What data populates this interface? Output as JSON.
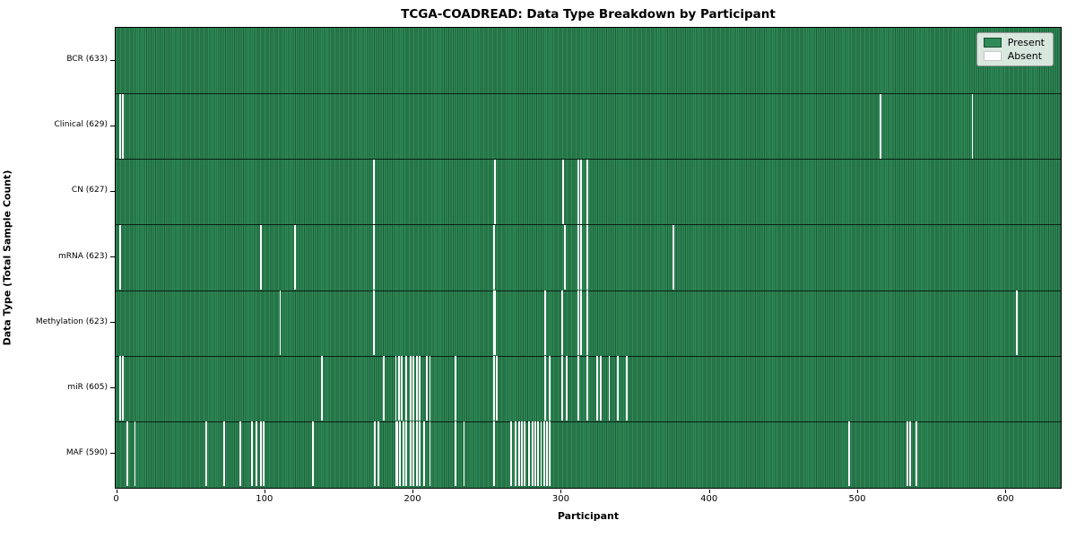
{
  "chart_data": {
    "type": "heatmap",
    "title": "TCGA-COADREAD: Data Type Breakdown by Participant",
    "xlabel": "Participant",
    "ylabel": "Data Type (Total Sample Count)",
    "x_ticks": [
      0,
      100,
      200,
      300,
      400,
      500,
      600
    ],
    "x_range": [
      0,
      637
    ],
    "n_participants": 633,
    "grid": false,
    "legend": {
      "position": "upper right",
      "entries": [
        {
          "label": "Present",
          "color": "#2e8b57"
        },
        {
          "label": "Absent",
          "color": "#ffffff"
        }
      ]
    },
    "colors": {
      "present": "#2e8b57",
      "bar_edge": "#1e5c3a",
      "absent": "#ffffff",
      "spine": "#000000"
    },
    "rows": [
      {
        "label": "BCR (633)",
        "data_type": "BCR",
        "total_sample_count": 633,
        "absent_participants": []
      },
      {
        "label": "Clinical (629)",
        "data_type": "Clinical",
        "total_sample_count": 629,
        "absent_participants": [
          3,
          5,
          516,
          578
        ]
      },
      {
        "label": "CN (627)",
        "data_type": "CN",
        "total_sample_count": 627,
        "absent_participants": [
          174,
          256,
          302,
          312,
          314,
          318
        ]
      },
      {
        "label": "mRNA (623)",
        "data_type": "mRNA",
        "total_sample_count": 623,
        "absent_participants": [
          3,
          98,
          121,
          174,
          255,
          303,
          312,
          314,
          318,
          376
        ]
      },
      {
        "label": "Methylation (623)",
        "data_type": "Methylation",
        "total_sample_count": 623,
        "absent_participants": [
          111,
          174,
          255,
          256,
          290,
          301,
          312,
          314,
          318,
          608
        ]
      },
      {
        "label": "miR (605)",
        "data_type": "miR",
        "total_sample_count": 605,
        "absent_participants": [
          3,
          5,
          139,
          181,
          189,
          191,
          193,
          196,
          199,
          201,
          203,
          205,
          210,
          212,
          229,
          255,
          257,
          290,
          293,
          301,
          304,
          312,
          318,
          325,
          327,
          333,
          339,
          345
        ]
      },
      {
        "label": "MAF (590)",
        "data_type": "MAF",
        "total_sample_count": 590,
        "absent_participants": [
          8,
          13,
          61,
          73,
          84,
          92,
          95,
          98,
          100,
          133,
          175,
          177,
          189,
          190,
          192,
          194,
          196,
          199,
          201,
          203,
          205,
          208,
          212,
          229,
          235,
          255,
          267,
          270,
          272,
          274,
          276,
          279,
          281,
          283,
          285,
          287,
          289,
          291,
          293,
          495,
          534,
          536,
          540
        ]
      }
    ]
  }
}
